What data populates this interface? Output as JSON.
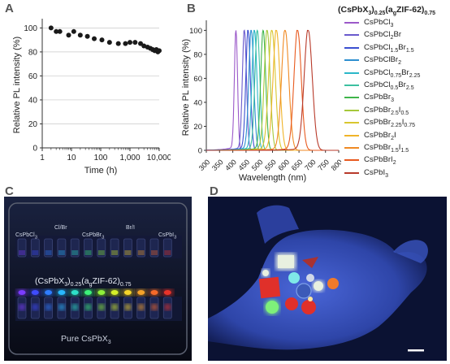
{
  "panels": {
    "a": "A",
    "b": "B",
    "c": "C",
    "d": "D"
  },
  "chart_data": [
    {
      "type": "scatter",
      "xlabel": "Time (h)",
      "ylabel": "Relative PL intensity (%)",
      "xscale": "log",
      "xlim": [
        1,
        10000
      ],
      "ylim": [
        0,
        105
      ],
      "grid": "horizontal",
      "xticks": [
        "1",
        "10",
        "100",
        "1,000",
        "10,000"
      ],
      "yticks": [
        "0",
        "20",
        "40",
        "60",
        "80",
        "100"
      ],
      "color": "#1a1a1a",
      "x": [
        2,
        3,
        4,
        8,
        12,
        20,
        35,
        60,
        110,
        200,
        400,
        700,
        1000,
        1500,
        2300,
        3000,
        4000,
        5000,
        6000,
        7000,
        8000,
        9000,
        10000
      ],
      "y": [
        100,
        97,
        97,
        94,
        97,
        94,
        93,
        91,
        90,
        88,
        87,
        87,
        88,
        88,
        87,
        85,
        84,
        83,
        82,
        81,
        82,
        80,
        81
      ]
    },
    {
      "type": "line",
      "xlabel": "Wavelength (nm)",
      "ylabel": "Relative PL intensity (%)",
      "xlim": [
        300,
        800
      ],
      "ylim": [
        0,
        105
      ],
      "xticks": [
        "300",
        "350",
        "400",
        "450",
        "500",
        "550",
        "600",
        "650",
        "700",
        "750",
        "800"
      ],
      "yticks": [
        "0",
        "20",
        "40",
        "60",
        "80",
        "100"
      ],
      "legend_title": "(CsPbX3)0.25(agZIF-62)0.75",
      "legend_position": "right",
      "series": [
        {
          "name": "CsPbCl3",
          "peak": 412,
          "fwhm": 14,
          "color": "#9b59c9"
        },
        {
          "name": "CsPbCl2Br",
          "peak": 444,
          "fwhm": 18,
          "color": "#6a5acd"
        },
        {
          "name": "CsPbCl1.5Br1.5",
          "peak": 458,
          "fwhm": 20,
          "color": "#3b4fd0"
        },
        {
          "name": "CsPbClBr2",
          "peak": 470,
          "fwhm": 22,
          "color": "#2d8fd0"
        },
        {
          "name": "CsPbCl0.75Br2.25",
          "peak": 482,
          "fwhm": 22,
          "color": "#2bb7c9"
        },
        {
          "name": "CsPbCl0.5Br2.5",
          "peak": 493,
          "fwhm": 22,
          "color": "#3cc0a0"
        },
        {
          "name": "CsPbBr3",
          "peak": 515,
          "fwhm": 22,
          "color": "#3fb54a"
        },
        {
          "name": "CsPbBr2.5I0.5",
          "peak": 530,
          "fwhm": 26,
          "color": "#a6c83a"
        },
        {
          "name": "CsPbBr2.25I0.75",
          "peak": 548,
          "fwhm": 30,
          "color": "#d8c62e"
        },
        {
          "name": "CsPbBr2I",
          "peak": 565,
          "fwhm": 30,
          "color": "#f0b429"
        },
        {
          "name": "CsPbBr1.5I1.5",
          "peak": 598,
          "fwhm": 32,
          "color": "#f08a24"
        },
        {
          "name": "CsPbBrI2",
          "peak": 645,
          "fwhm": 32,
          "color": "#e85a1f"
        },
        {
          "name": "CsPbI3",
          "peak": 685,
          "fwhm": 36,
          "color": "#b83a2a"
        }
      ],
      "legend_rows": [
        {
          "pre": "CsPbCl",
          "sub1": "3",
          "mid": "",
          "sub2": ""
        },
        {
          "pre": "CsPbCl",
          "sub1": "2",
          "mid": "Br",
          "sub2": ""
        },
        {
          "pre": "CsPbCl",
          "sub1": "1.5",
          "mid": "Br",
          "sub2": "1.5"
        },
        {
          "pre": "CsPbClBr",
          "sub1": "2",
          "mid": "",
          "sub2": ""
        },
        {
          "pre": "CsPbCl",
          "sub1": "0.75",
          "mid": "Br",
          "sub2": "2.25"
        },
        {
          "pre": "CsPbCl",
          "sub1": "0.5",
          "mid": "Br",
          "sub2": "2.5"
        },
        {
          "pre": "CsPbBr",
          "sub1": "3",
          "mid": "",
          "sub2": ""
        },
        {
          "pre": "CsPbBr",
          "sub1": "2.5",
          "mid": "I",
          "sub2": "0.5"
        },
        {
          "pre": "CsPbBr",
          "sub1": "2.25",
          "mid": "I",
          "sub2": "0.75"
        },
        {
          "pre": "CsPbBr",
          "sub1": "2",
          "mid": "I",
          "sub2": ""
        },
        {
          "pre": "CsPbBr",
          "sub1": "1.5",
          "mid": "I",
          "sub2": "1.5"
        },
        {
          "pre": "CsPbBrI",
          "sub1": "2",
          "mid": "",
          "sub2": ""
        },
        {
          "pre": "CsPbI",
          "sub1": "3",
          "mid": "",
          "sub2": ""
        }
      ]
    }
  ],
  "photo_c": {
    "top_labels": [
      "CsPbCl3",
      "Cl/Br",
      "CsPbBr3",
      "Br/I",
      "CsPbI3"
    ],
    "middle_label": "(CsPbX3)0.25(agZIF-62)0.75",
    "bottom_label": "Pure CsPbX3",
    "glow_colors": [
      "#7b3cff",
      "#3f4cff",
      "#2f7dff",
      "#29b8ff",
      "#2ee0c8",
      "#3df07a",
      "#8ff03a",
      "#d6f02a",
      "#f5d42a",
      "#f5a22a",
      "#f56a2a",
      "#e8332a"
    ]
  },
  "photo_d": {
    "colors": {
      "background": "#0b1233",
      "glove": "#3d56c8",
      "white": "#e8f0e0",
      "red": "#e0302a",
      "orange": "#f07a2a",
      "green": "#7ef07a",
      "cyan": "#7fe8e8"
    }
  }
}
